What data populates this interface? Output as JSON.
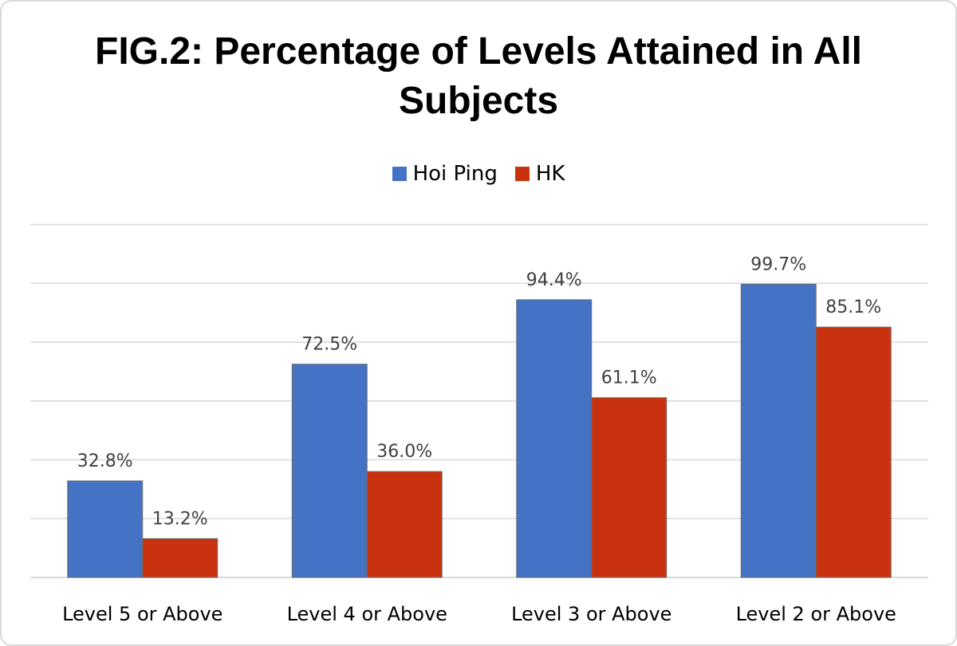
{
  "chart_data": {
    "type": "bar",
    "title": "FIG.2: Percentage of Levels Attained in All Subjects",
    "categories": [
      "Level 5 or Above",
      "Level 4 or Above",
      "Level 3 or Above",
      "Level 2 or Above"
    ],
    "series": [
      {
        "name": "Hoi Ping",
        "color": "#4472c4",
        "values": [
          32.8,
          72.5,
          94.4,
          99.7
        ],
        "labels": [
          "32.8%",
          "72.5%",
          "94.4%",
          "99.7%"
        ]
      },
      {
        "name": "HK",
        "color": "#c9320f",
        "values": [
          13.2,
          36.0,
          61.1,
          85.1
        ],
        "labels": [
          "13.2%",
          "36.0%",
          "61.1%",
          "85.1%"
        ]
      }
    ],
    "ylim": [
      0,
      120
    ],
    "grid": true,
    "legend_position": "top"
  }
}
